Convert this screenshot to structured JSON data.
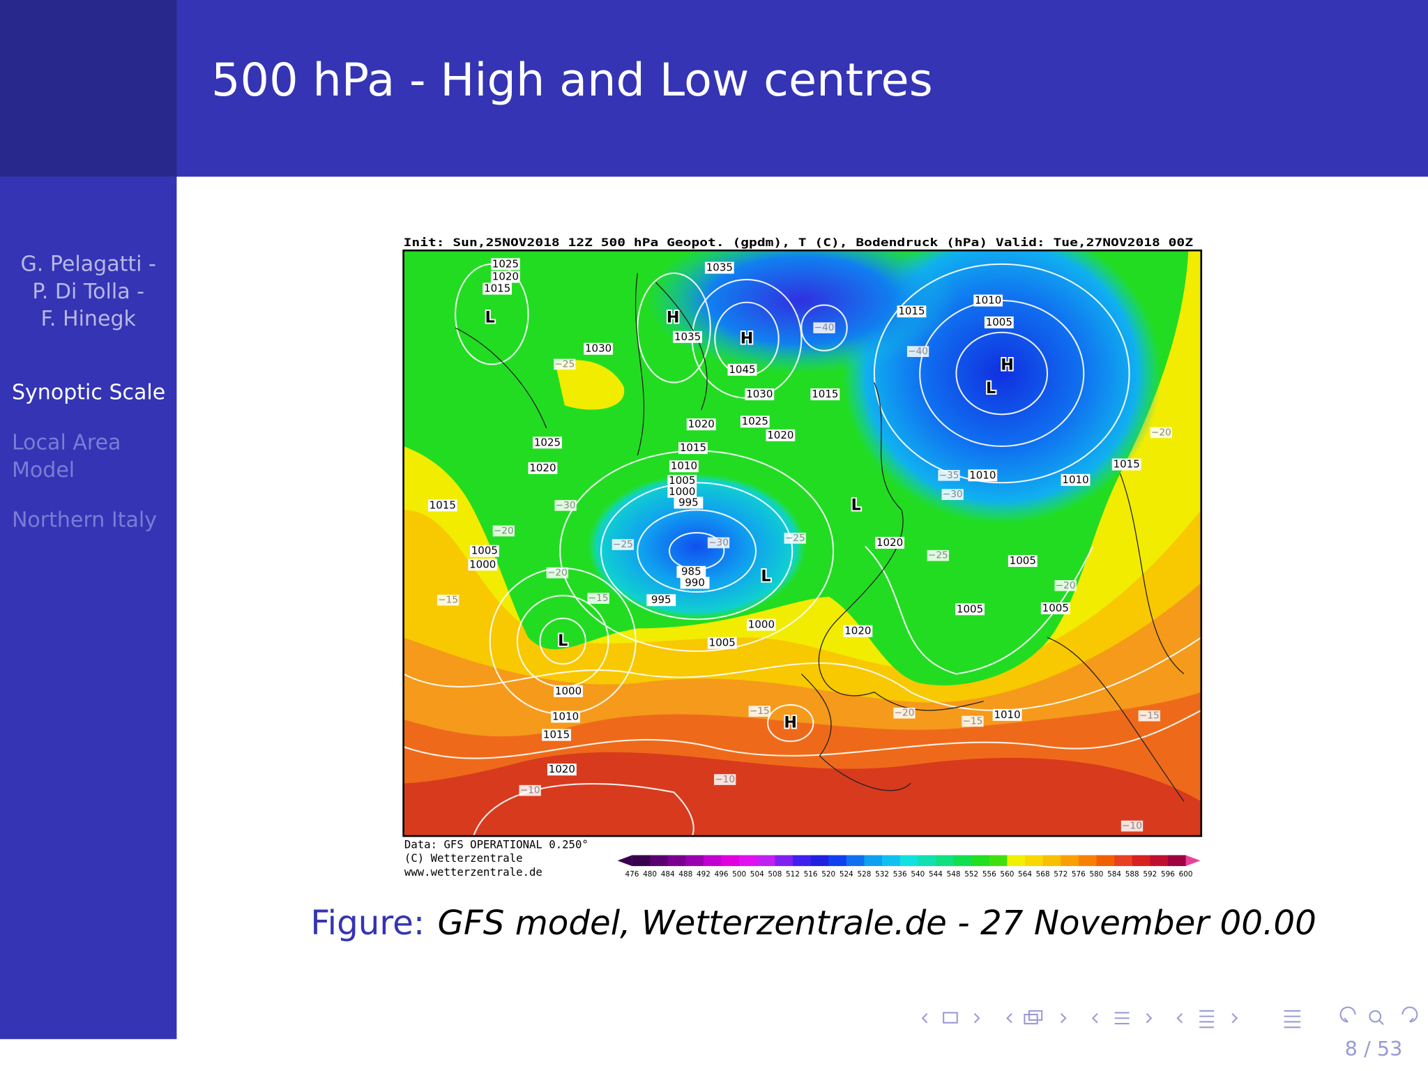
{
  "header": {
    "title": "500 hPa - High and Low centres"
  },
  "sidebar": {
    "authors": [
      "G. Pelagatti -",
      "P. Di Tolla -",
      "F. Hinegk"
    ],
    "sections": [
      "Synoptic Scale",
      "Local Area",
      "Model",
      "Northern Italy"
    ]
  },
  "map": {
    "header": "Init: Sun,25NOV2018 12Z  500 hPa Geopot. (gpdm), T (C), Bodendruck (hPa)  Valid: Tue,27NOV2018 00Z",
    "credits": [
      "Data: GFS OPERATIONAL 0.250°",
      "(C) Wetterzentrale",
      "www.wetterzentrale.de"
    ],
    "centres": [
      "L",
      "H",
      "H",
      "H",
      "L",
      "L",
      "L",
      "L",
      "H"
    ],
    "isobar_labels": [
      "1035",
      "1035",
      "1030",
      "1045",
      "1030",
      "1015",
      "1020",
      "1025",
      "1020",
      "1015",
      "1010",
      "1005",
      "1025",
      "1020",
      "1015",
      "1010",
      "1005",
      "1000",
      "995",
      "1015",
      "1005",
      "1000",
      "985",
      "990",
      "995",
      "1020",
      "1010",
      "1010",
      "1015",
      "1005",
      "1005",
      "1005",
      "1000",
      "1005",
      "1020",
      "1000",
      "1010",
      "1015",
      "1020",
      "1010",
      "1025",
      "1020",
      "1015"
    ],
    "temperature_labels": [
      "−25",
      "−40",
      "−40",
      "−30",
      "−20",
      "−20",
      "−15",
      "−15",
      "−25",
      "−30",
      "−25",
      "−35",
      "−30",
      "−25",
      "−20",
      "−20",
      "−15",
      "−20",
      "−15",
      "−15",
      "−10",
      "−10",
      "−10"
    ]
  },
  "colorbar": {
    "labels": [
      476,
      480,
      484,
      488,
      492,
      496,
      500,
      504,
      508,
      512,
      516,
      520,
      524,
      528,
      532,
      536,
      540,
      544,
      548,
      552,
      556,
      560,
      564,
      568,
      572,
      576,
      580,
      584,
      588,
      592,
      596,
      600
    ],
    "colors": [
      "#3a0050",
      "#5a0070",
      "#7a0090",
      "#9a00b0",
      "#c000d0",
      "#e000e0",
      "#e010f0",
      "#c020f0",
      "#8020f0",
      "#4020f0",
      "#2020e0",
      "#1040f0",
      "#1070f0",
      "#10a0f0",
      "#10c0f0",
      "#10e0e0",
      "#10e0b0",
      "#10e080",
      "#10e050",
      "#20e020",
      "#40e010",
      "#f0f000",
      "#f8d800",
      "#f8c000",
      "#f8a000",
      "#f88000",
      "#f06000",
      "#e84020",
      "#d82020",
      "#c01030",
      "#a00040"
    ]
  },
  "caption": {
    "label": "Figure:",
    "text": "GFS model, Wetterzentrale.de - 27 November 00.00"
  },
  "footer": {
    "page": "8 / 53"
  }
}
